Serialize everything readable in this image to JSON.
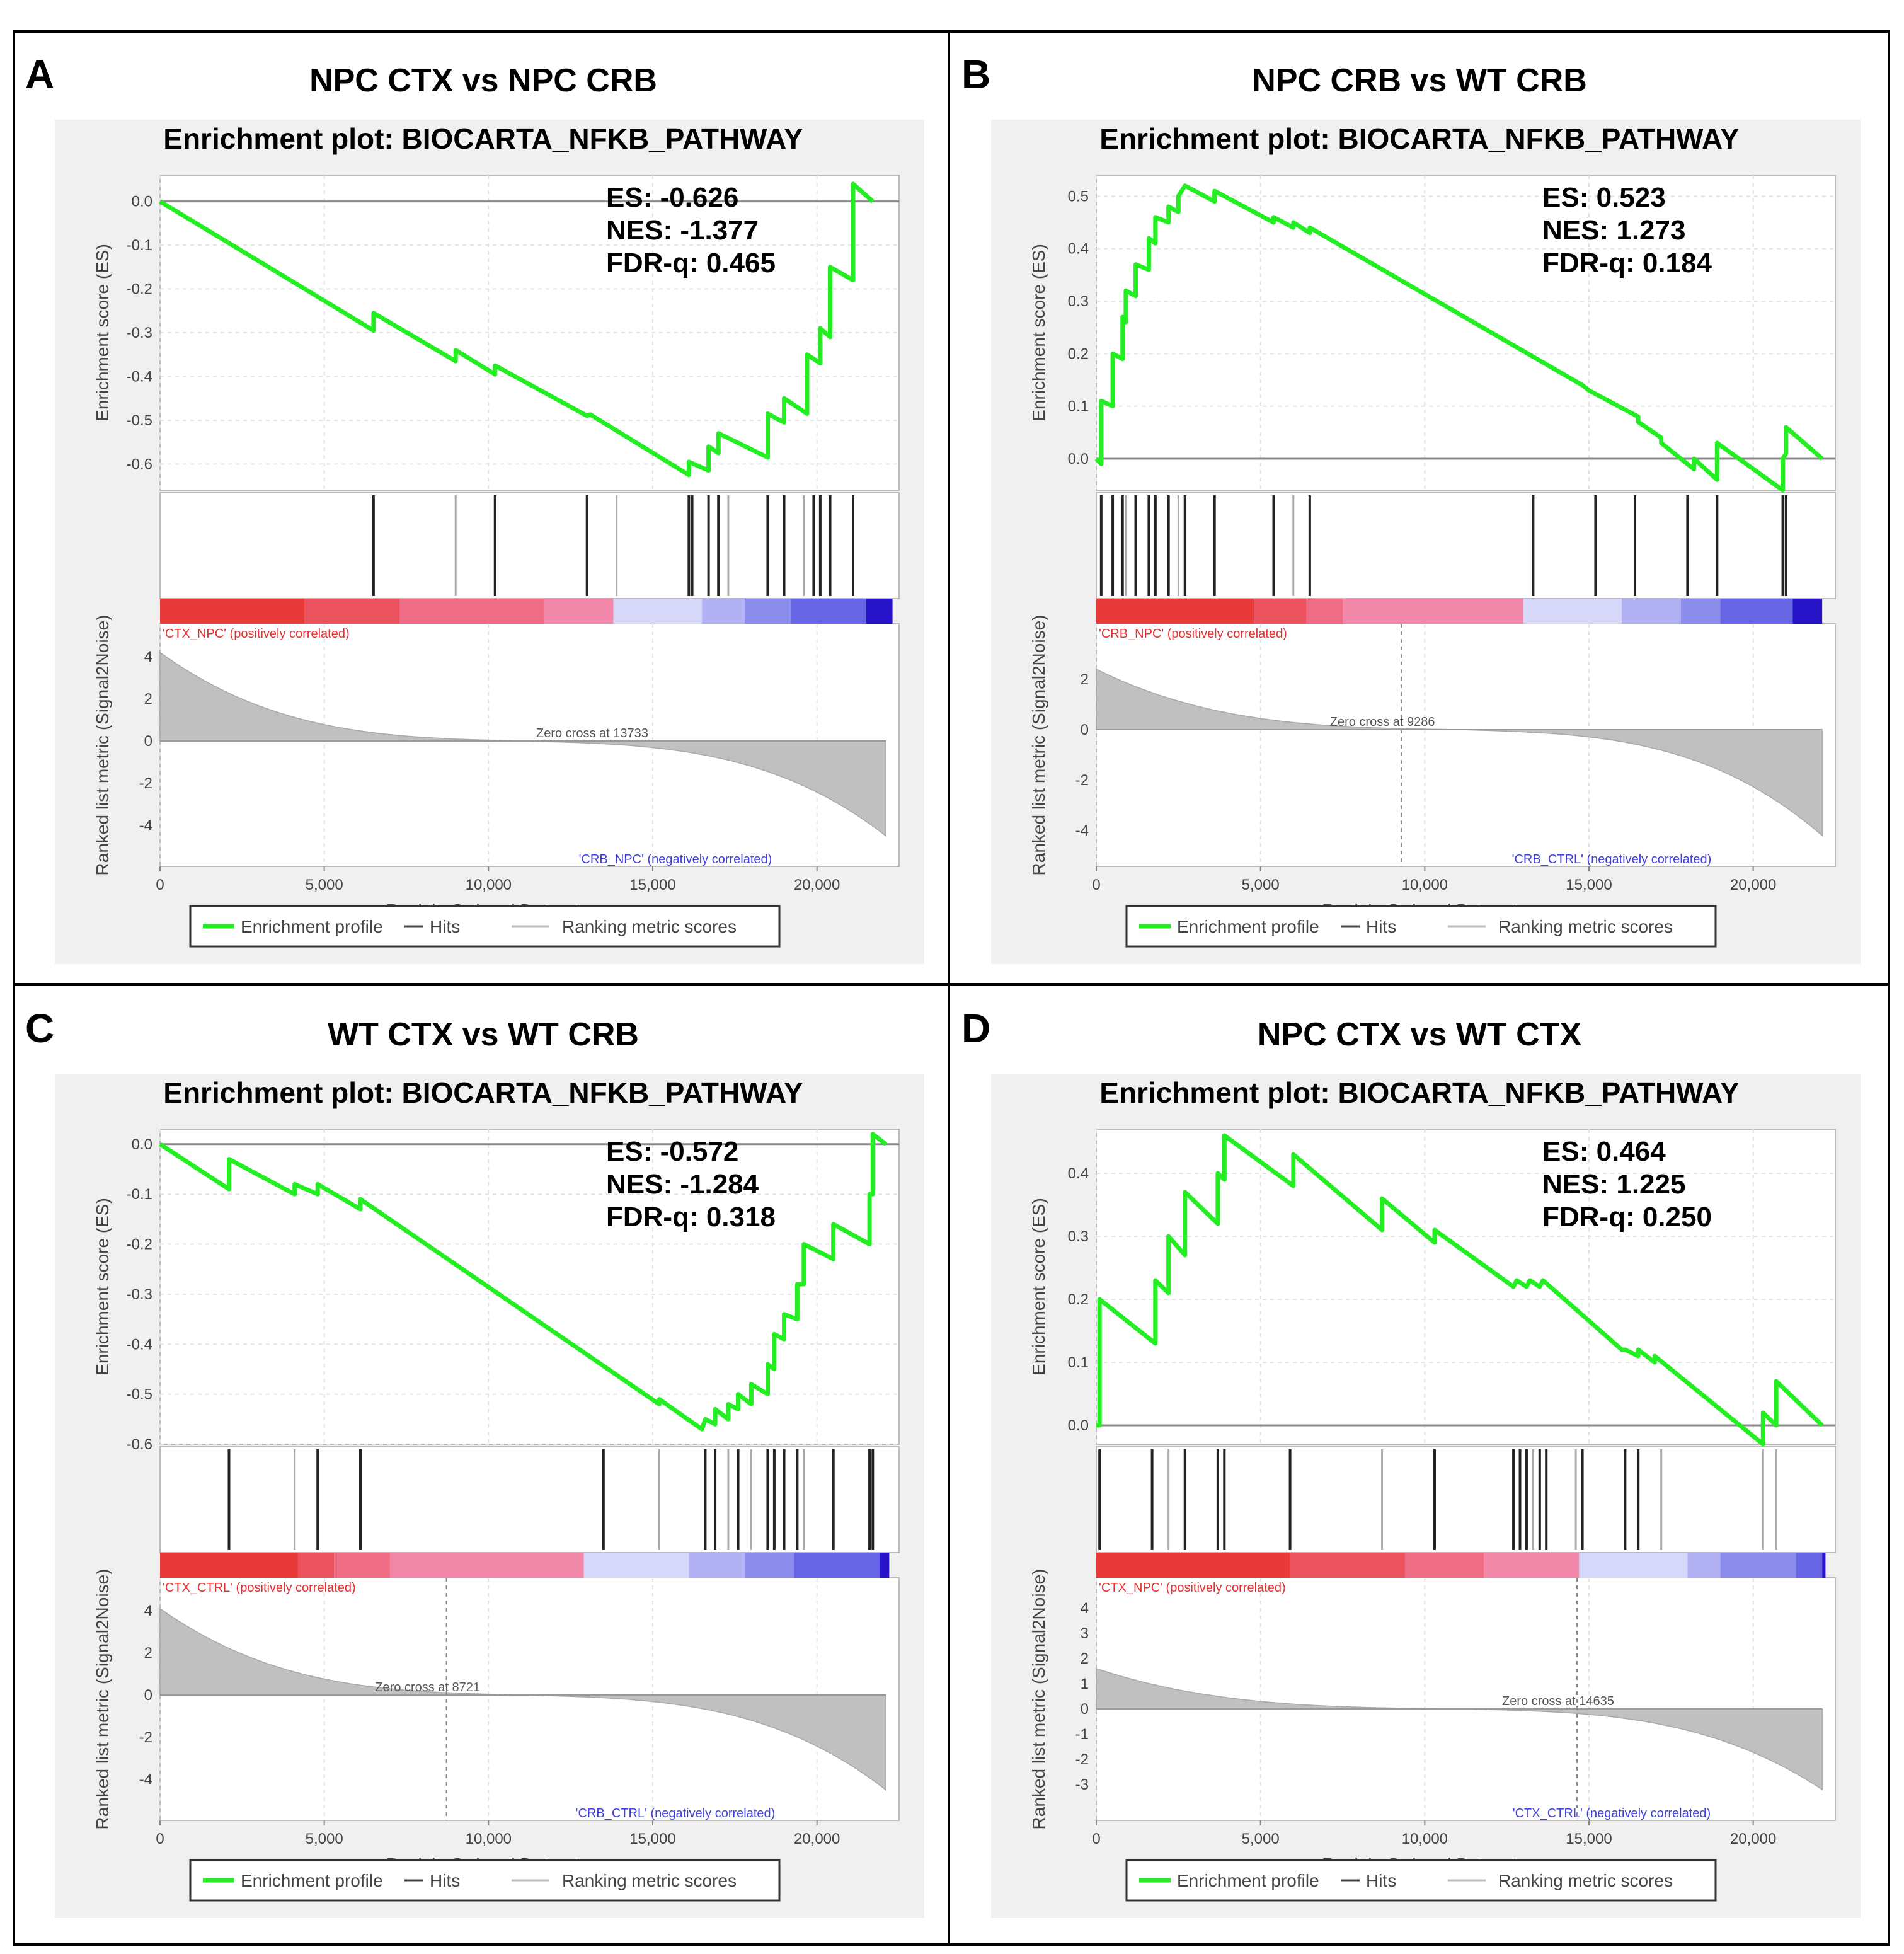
{
  "figure": {
    "enrichment_title": "Enrichment plot: BIOCARTA_NFKB_PATHWAY",
    "x_axis_label": "Rank in Ordered Dataset",
    "y_axis_es_label": "Enrichment score (ES)",
    "y_axis_rank_label": "Ranked list metric (Signal2Noise)",
    "legend": {
      "profile": "Enrichment profile",
      "hits": "Hits",
      "ranking": "Ranking metric scores"
    },
    "colors": {
      "profile": "#22ee22",
      "positive": "#e83030",
      "negative": "#4040e0",
      "metric": "#c0c0c0"
    }
  },
  "chart_data": [
    {
      "type": "line",
      "panel_letter": "A",
      "title": "NPC CTX vs NPC CRB",
      "stats": {
        "es": "ES: -0.626",
        "nes": "NES: -1.377",
        "fdr": "FDR-q: 0.465"
      },
      "x_range": [
        0,
        22500
      ],
      "x_ticks": [
        0,
        5000,
        10000,
        15000,
        20000
      ],
      "x_tick_labels": [
        "0",
        "5,000",
        "10,000",
        "15,000",
        "20,000"
      ],
      "es_range": [
        -0.66,
        0.06
      ],
      "es_ticks": [
        0.0,
        -0.1,
        -0.2,
        -0.3,
        -0.4,
        -0.5,
        -0.6
      ],
      "es_tick_labels": [
        "0.0",
        "-0.1",
        "-0.2",
        "-0.3",
        "-0.4",
        "-0.5",
        "-0.6"
      ],
      "es_points": [
        [
          0,
          0
        ],
        [
          6500,
          -0.295
        ],
        [
          6500,
          -0.255
        ],
        [
          9000,
          -0.365
        ],
        [
          9000,
          -0.34
        ],
        [
          10200,
          -0.395
        ],
        [
          10200,
          -0.375
        ],
        [
          13000,
          -0.49
        ],
        [
          13100,
          -0.487
        ],
        [
          16100,
          -0.625
        ],
        [
          16100,
          -0.595
        ],
        [
          16700,
          -0.615
        ],
        [
          16700,
          -0.56
        ],
        [
          17000,
          -0.575
        ],
        [
          17000,
          -0.53
        ],
        [
          18500,
          -0.585
        ],
        [
          18500,
          -0.485
        ],
        [
          19000,
          -0.505
        ],
        [
          19000,
          -0.45
        ],
        [
          19700,
          -0.485
        ],
        [
          19700,
          -0.35
        ],
        [
          20100,
          -0.37
        ],
        [
          20100,
          -0.29
        ],
        [
          20400,
          -0.31
        ],
        [
          20400,
          -0.15
        ],
        [
          21100,
          -0.18
        ],
        [
          21100,
          0.04
        ],
        [
          21700,
          0.0
        ]
      ],
      "hits": [
        6500,
        9000,
        10200,
        13000,
        13900,
        16100,
        16200,
        16700,
        17000,
        17300,
        18500,
        19000,
        19600,
        19900,
        20100,
        20400,
        21100
      ],
      "hits_light": [
        9000,
        13900,
        17300,
        19600
      ],
      "zero_cross": "Zero cross at 13733",
      "zero_cross_x": 13733,
      "show_zero_line": false,
      "pos_label": "'CTX_NPC' (positively correlated)",
      "neg_label": "'CRB_NPC' (negatively correlated)",
      "metric_range": [
        -4.6,
        4.6
      ],
      "metric_ticks": [
        4,
        2,
        0,
        -2,
        -4
      ],
      "metric_tick_labels": [
        "4",
        "2",
        "0",
        "-2",
        "-4"
      ],
      "metric_start": 4.2,
      "metric_end": -4.5,
      "heat_stops": [
        4400,
        7300,
        11700,
        13800,
        16500,
        17800,
        19200,
        21500,
        22300
      ]
    },
    {
      "type": "line",
      "panel_letter": "B",
      "title": "NPC CRB vs WT CRB",
      "stats": {
        "es": "ES: 0.523",
        "nes": "NES: 1.273",
        "fdr": "FDR-q: 0.184"
      },
      "x_range": [
        0,
        22500
      ],
      "x_ticks": [
        0,
        5000,
        10000,
        15000,
        20000
      ],
      "x_tick_labels": [
        "0",
        "5,000",
        "10,000",
        "15,000",
        "20,000"
      ],
      "es_range": [
        -0.06,
        0.54
      ],
      "es_ticks": [
        0.5,
        0.4,
        0.3,
        0.2,
        0.1,
        0.0
      ],
      "es_tick_labels": [
        "0.5",
        "0.4",
        "0.3",
        "0.2",
        "0.1",
        "0.0"
      ],
      "es_points": [
        [
          0,
          0
        ],
        [
          150,
          -0.01
        ],
        [
          150,
          0.11
        ],
        [
          500,
          0.1
        ],
        [
          500,
          0.2
        ],
        [
          800,
          0.19
        ],
        [
          800,
          0.27
        ],
        [
          900,
          0.26
        ],
        [
          900,
          0.32
        ],
        [
          1200,
          0.31
        ],
        [
          1200,
          0.37
        ],
        [
          1600,
          0.36
        ],
        [
          1600,
          0.42
        ],
        [
          1800,
          0.41
        ],
        [
          1800,
          0.46
        ],
        [
          2200,
          0.45
        ],
        [
          2200,
          0.48
        ],
        [
          2500,
          0.47
        ],
        [
          2500,
          0.5
        ],
        [
          2700,
          0.52
        ],
        [
          3600,
          0.49
        ],
        [
          3600,
          0.51
        ],
        [
          5400,
          0.45
        ],
        [
          5400,
          0.46
        ],
        [
          6000,
          0.44
        ],
        [
          6000,
          0.45
        ],
        [
          6500,
          0.43
        ],
        [
          6500,
          0.44
        ],
        [
          14800,
          0.14
        ],
        [
          15000,
          0.13
        ],
        [
          16500,
          0.08
        ],
        [
          16500,
          0.07
        ],
        [
          17200,
          0.04
        ],
        [
          17200,
          0.03
        ],
        [
          18200,
          -0.02
        ],
        [
          18200,
          0.0
        ],
        [
          18900,
          -0.04
        ],
        [
          18900,
          0.03
        ],
        [
          20900,
          -0.06
        ],
        [
          20900,
          0.0
        ],
        [
          21000,
          0.01
        ],
        [
          21000,
          0.06
        ],
        [
          22100,
          0.0
        ]
      ],
      "hits": [
        150,
        500,
        800,
        900,
        1200,
        1600,
        1800,
        2200,
        2500,
        2700,
        3600,
        5400,
        6000,
        6500,
        13300,
        15200,
        16400,
        18000,
        18900,
        20900,
        21000
      ],
      "hits_light": [
        900,
        2500,
        6000
      ],
      "zero_cross": "Zero cross at 9286",
      "zero_cross_x": 9286,
      "show_zero_line": true,
      "pos_label": "'CRB_NPC' (positively correlated)",
      "neg_label": "'CRB_CTRL' (negatively correlated)",
      "metric_range": [
        -4.3,
        3.4
      ],
      "metric_ticks": [
        2,
        0,
        -2,
        -4
      ],
      "metric_tick_labels": [
        "2",
        "0",
        "-2",
        "-4"
      ],
      "metric_start": 2.4,
      "metric_end": -4.2,
      "heat_stops": [
        4800,
        6400,
        7500,
        13000,
        16000,
        17800,
        19000,
        21200,
        22100
      ]
    },
    {
      "type": "line",
      "panel_letter": "C",
      "title": "WT CTX vs WT CRB",
      "stats": {
        "es": "ES: -0.572",
        "nes": "NES: -1.284",
        "fdr": "FDR-q: 0.318"
      },
      "x_range": [
        0,
        22500
      ],
      "x_ticks": [
        0,
        5000,
        10000,
        15000,
        20000
      ],
      "x_tick_labels": [
        "0",
        "5,000",
        "10,000",
        "15,000",
        "20,000"
      ],
      "es_range": [
        -0.6,
        0.03
      ],
      "es_ticks": [
        0.0,
        -0.1,
        -0.2,
        -0.3,
        -0.4,
        -0.5,
        -0.6
      ],
      "es_tick_labels": [
        "0.0",
        "-0.1",
        "-0.2",
        "-0.3",
        "-0.4",
        "-0.5",
        "-0.6"
      ],
      "es_points": [
        [
          0,
          0
        ],
        [
          2100,
          -0.09
        ],
        [
          2100,
          -0.03
        ],
        [
          4100,
          -0.1
        ],
        [
          4100,
          -0.08
        ],
        [
          4800,
          -0.1
        ],
        [
          4800,
          -0.08
        ],
        [
          6100,
          -0.13
        ],
        [
          6100,
          -0.11
        ],
        [
          15200,
          -0.52
        ],
        [
          15200,
          -0.51
        ],
        [
          16500,
          -0.57
        ],
        [
          16600,
          -0.55
        ],
        [
          16900,
          -0.56
        ],
        [
          16900,
          -0.53
        ],
        [
          17300,
          -0.55
        ],
        [
          17300,
          -0.52
        ],
        [
          17600,
          -0.53
        ],
        [
          17600,
          -0.5
        ],
        [
          18000,
          -0.52
        ],
        [
          18000,
          -0.48
        ],
        [
          18500,
          -0.5
        ],
        [
          18500,
          -0.44
        ],
        [
          18700,
          -0.45
        ],
        [
          18700,
          -0.38
        ],
        [
          19000,
          -0.39
        ],
        [
          19000,
          -0.34
        ],
        [
          19400,
          -0.35
        ],
        [
          19400,
          -0.28
        ],
        [
          19600,
          -0.28
        ],
        [
          19600,
          -0.2
        ],
        [
          20500,
          -0.23
        ],
        [
          20500,
          -0.16
        ],
        [
          21600,
          -0.2
        ],
        [
          21600,
          -0.1
        ],
        [
          21700,
          -0.1
        ],
        [
          21700,
          0.02
        ],
        [
          22100,
          0.0
        ]
      ],
      "hits": [
        2100,
        4100,
        4800,
        6100,
        13500,
        15200,
        16600,
        16900,
        17300,
        17600,
        18000,
        18500,
        18700,
        19000,
        19400,
        19600,
        20500,
        21600,
        21700
      ],
      "hits_light": [
        4100,
        15200,
        17300,
        18000,
        19600
      ],
      "zero_cross": "Zero cross at 8721",
      "zero_cross_x": 8721,
      "show_zero_line": true,
      "pos_label": "'CTX_CTRL' (positively correlated)",
      "neg_label": "'CRB_CTRL' (negatively correlated)",
      "metric_range": [
        -4.6,
        4.6
      ],
      "metric_ticks": [
        4,
        2,
        0,
        -2,
        -4
      ],
      "metric_tick_labels": [
        "4",
        "2",
        "0",
        "-2",
        "-4"
      ],
      "metric_start": 4.1,
      "metric_end": -4.5,
      "heat_stops": [
        4200,
        5300,
        7000,
        12900,
        16100,
        17800,
        19300,
        21900,
        22200
      ]
    },
    {
      "type": "line",
      "panel_letter": "D",
      "title": "NPC CTX vs WT CTX",
      "stats": {
        "es": "ES: 0.464",
        "nes": "NES: 1.225",
        "fdr": "FDR-q: 0.250"
      },
      "x_range": [
        0,
        22500
      ],
      "x_ticks": [
        0,
        5000,
        10000,
        15000,
        20000
      ],
      "x_tick_labels": [
        "0",
        "5,000",
        "10,000",
        "15,000",
        "20,000"
      ],
      "es_range": [
        -0.03,
        0.47
      ],
      "es_ticks": [
        0.4,
        0.3,
        0.2,
        0.1,
        0.0
      ],
      "es_tick_labels": [
        "0.4",
        "0.3",
        "0.2",
        "0.1",
        "0.0"
      ],
      "es_points": [
        [
          0,
          0
        ],
        [
          100,
          0.0
        ],
        [
          100,
          0.2
        ],
        [
          1800,
          0.13
        ],
        [
          1800,
          0.23
        ],
        [
          2200,
          0.21
        ],
        [
          2200,
          0.3
        ],
        [
          2700,
          0.27
        ],
        [
          2700,
          0.37
        ],
        [
          3700,
          0.32
        ],
        [
          3700,
          0.4
        ],
        [
          3900,
          0.39
        ],
        [
          3900,
          0.46
        ],
        [
          6000,
          0.38
        ],
        [
          6000,
          0.43
        ],
        [
          8700,
          0.31
        ],
        [
          8700,
          0.36
        ],
        [
          10300,
          0.29
        ],
        [
          10300,
          0.31
        ],
        [
          12700,
          0.22
        ],
        [
          12800,
          0.23
        ],
        [
          13100,
          0.22
        ],
        [
          13200,
          0.23
        ],
        [
          13500,
          0.22
        ],
        [
          13600,
          0.23
        ],
        [
          16000,
          0.12
        ],
        [
          16100,
          0.12
        ],
        [
          16500,
          0.11
        ],
        [
          16500,
          0.12
        ],
        [
          17000,
          0.1
        ],
        [
          17000,
          0.11
        ],
        [
          20300,
          -0.03
        ],
        [
          20300,
          0.02
        ],
        [
          20700,
          0.0
        ],
        [
          20700,
          0.07
        ],
        [
          22100,
          0.0
        ]
      ],
      "hits": [
        100,
        1700,
        2200,
        2700,
        3700,
        3900,
        5900,
        8700,
        10300,
        12700,
        12900,
        13100,
        13300,
        13500,
        13700,
        14600,
        14800,
        16100,
        16500,
        17200,
        20300,
        20700
      ],
      "hits_light": [
        2200,
        8700,
        13300,
        14600,
        17200,
        20300,
        20700
      ],
      "zero_cross": "Zero cross at 14635",
      "zero_cross_x": 14635,
      "show_zero_line": true,
      "pos_label": "'CTX_NPC' (positively correlated)",
      "neg_label": "'CTX_CTRL' (negatively correlated)",
      "metric_range": [
        -3.3,
        4.4
      ],
      "metric_ticks": [
        4,
        3,
        2,
        1,
        0,
        -1,
        -2,
        -3
      ],
      "metric_tick_labels": [
        "4",
        "3",
        "2",
        "1",
        "0",
        "-1",
        "-2",
        "-3"
      ],
      "metric_start": 1.6,
      "metric_end": -3.2,
      "heat_stops": [
        5900,
        9400,
        11800,
        14700,
        18000,
        19000,
        21300,
        22100,
        22200
      ]
    }
  ]
}
